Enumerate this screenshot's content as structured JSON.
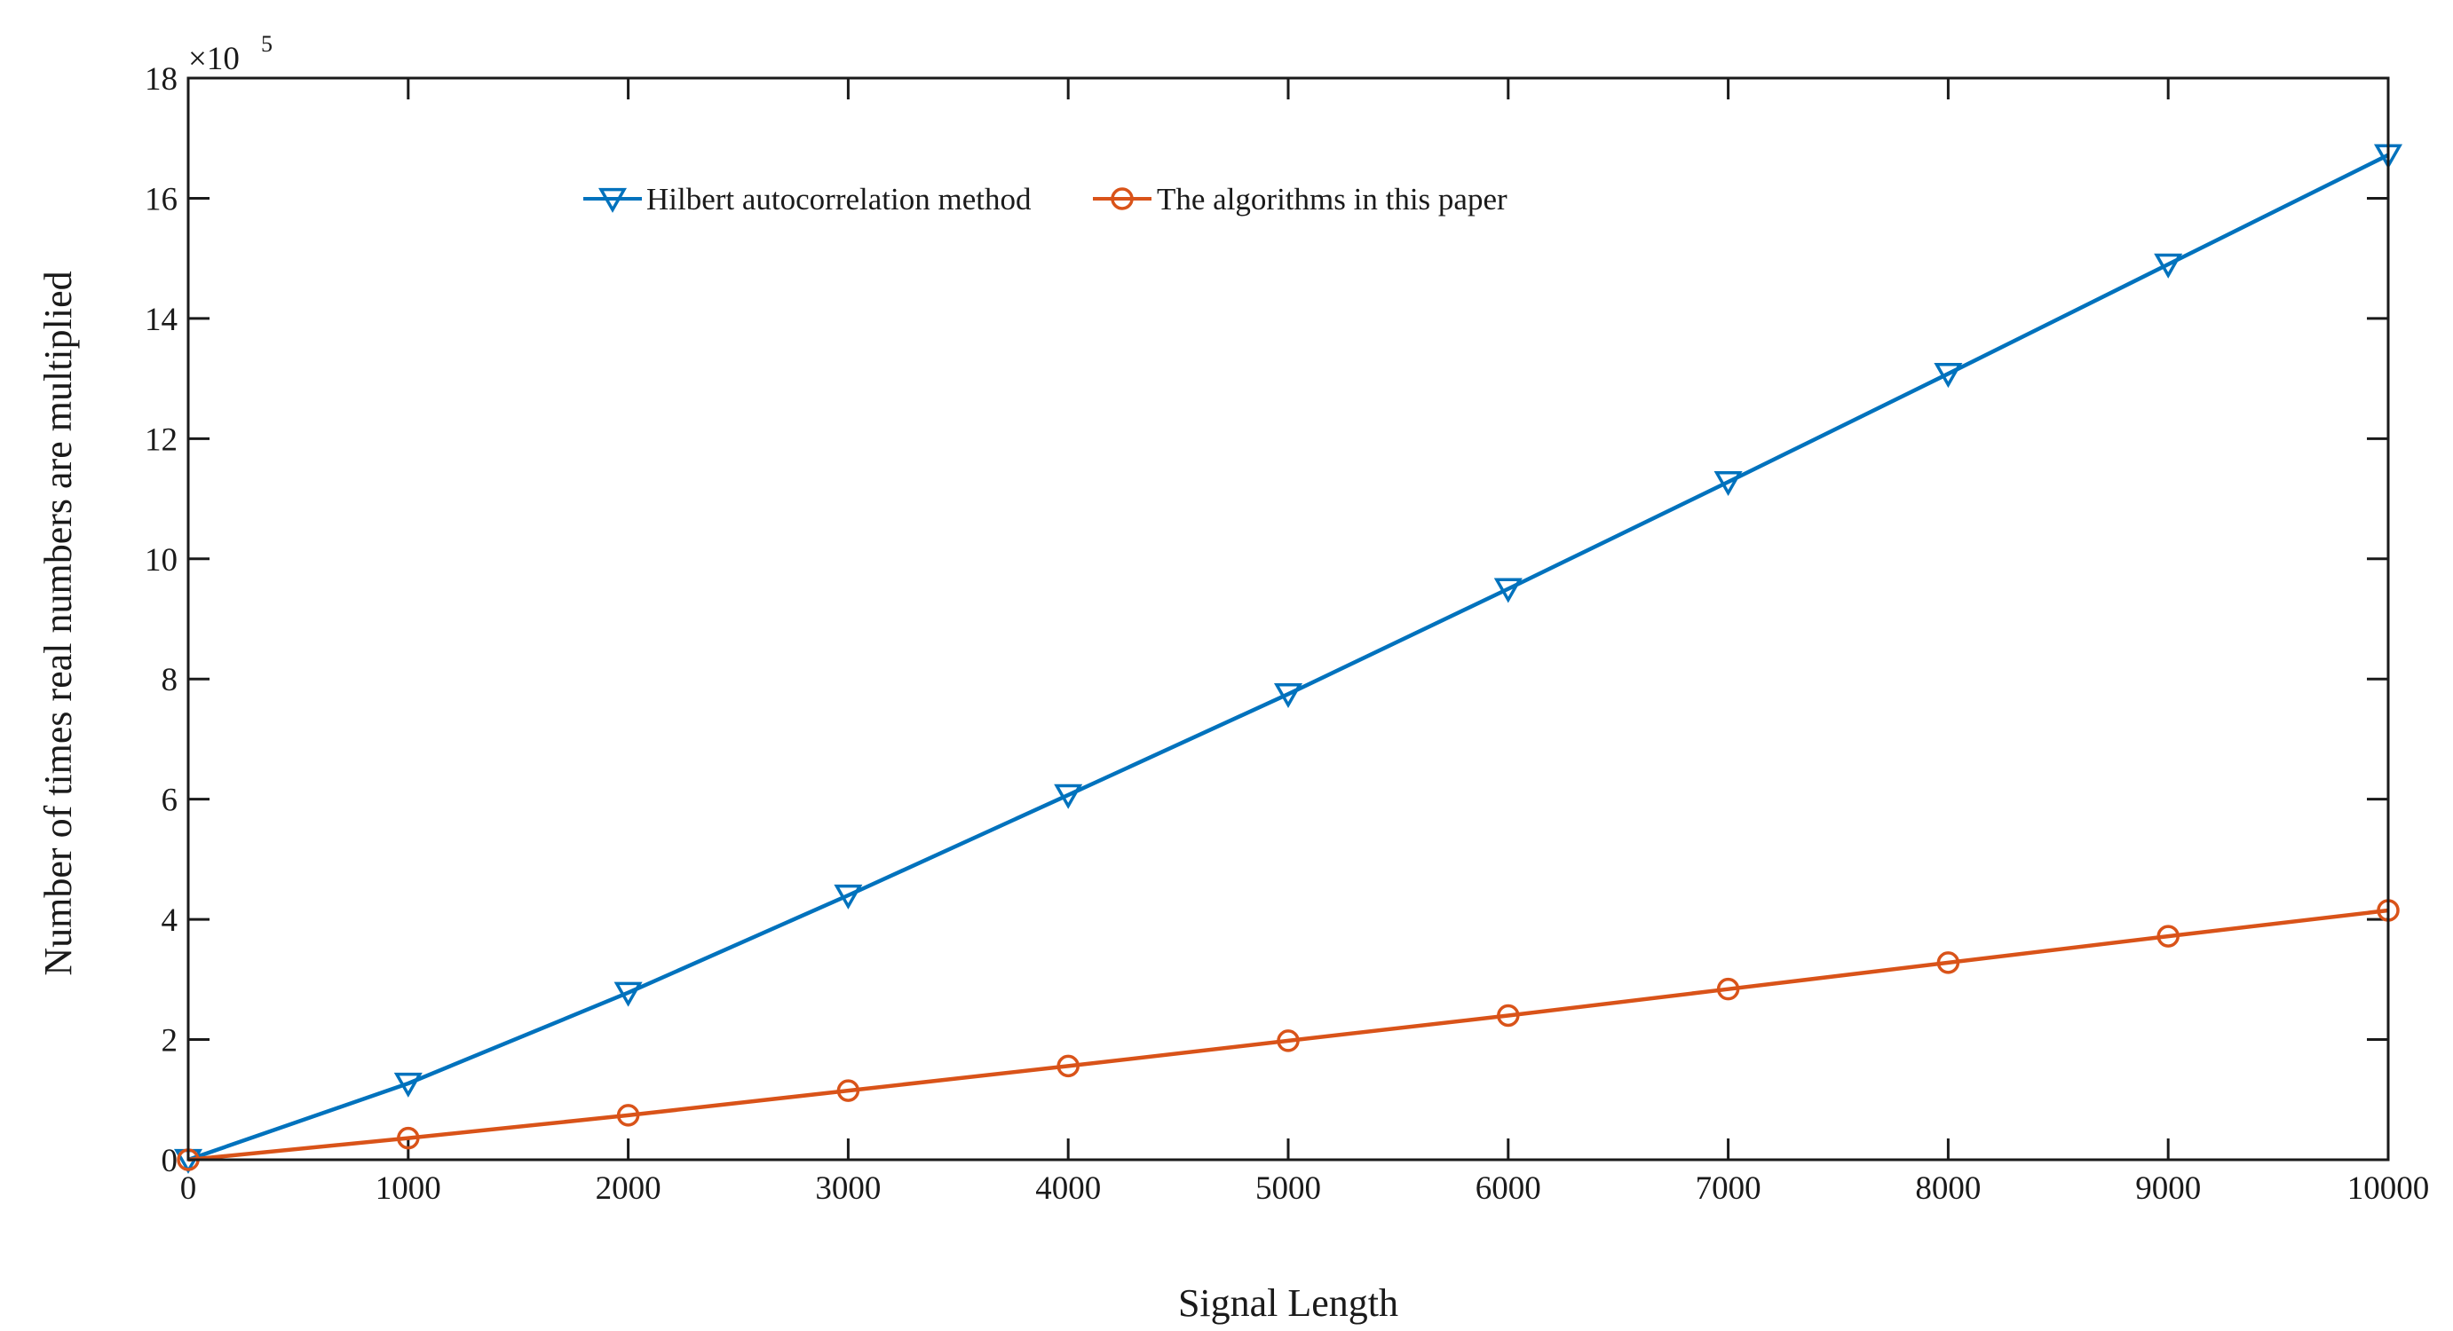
{
  "chart_data": {
    "type": "line",
    "title": "",
    "xlabel": "Signal Length",
    "ylabel": "Number of times real numbers are multiplied",
    "y_multiplier_base": "×10",
    "y_multiplier_exponent": "5",
    "xlim": [
      0,
      10000
    ],
    "ylim": [
      0,
      18
    ],
    "xticks": [
      "0",
      "1000",
      "2000",
      "3000",
      "4000",
      "5000",
      "6000",
      "7000",
      "8000",
      "9000",
      "10000"
    ],
    "yticks": [
      "0",
      "2",
      "4",
      "6",
      "8",
      "10",
      "12",
      "14",
      "16",
      "18"
    ],
    "grid": false,
    "legend_position": "top-center",
    "x": [
      0,
      1000,
      2000,
      3000,
      4000,
      5000,
      6000,
      7000,
      8000,
      9000,
      10000
    ],
    "series": [
      {
        "name": "Hilbert autocorrelation method",
        "color": "#0072BD",
        "marker": "triangle-down",
        "values": [
          0,
          1.27,
          2.78,
          4.4,
          6.07,
          7.75,
          9.5,
          11.28,
          13.08,
          14.9,
          16.72
        ]
      },
      {
        "name": "The algorithms in this paper",
        "color": "#D95319",
        "marker": "circle",
        "values": [
          0,
          0.36,
          0.74,
          1.15,
          1.56,
          1.98,
          2.4,
          2.84,
          3.28,
          3.72,
          4.15
        ]
      }
    ]
  }
}
